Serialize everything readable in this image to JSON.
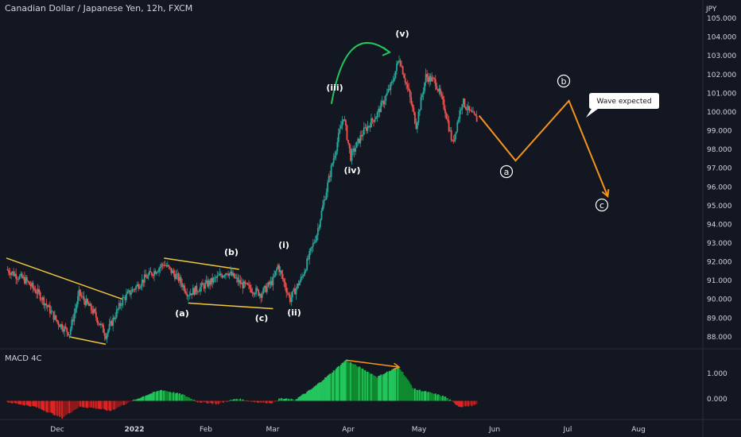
{
  "header": {
    "title": "Canadian Dollar / Japanese Yen, 12h, FXCM"
  },
  "price_axis": {
    "currency": "JPY",
    "ticks": [
      "88.000",
      "89.000",
      "90.000",
      "91.000",
      "92.000",
      "93.000",
      "94.000",
      "95.000",
      "96.000",
      "97.000",
      "98.000",
      "99.000",
      "100.000",
      "101.000",
      "102.000",
      "103.000",
      "104.000",
      "105.000"
    ]
  },
  "time_axis": {
    "labels": [
      "Dec",
      "2022",
      "Feb",
      "Mar",
      "Apr",
      "May",
      "Jun",
      "Jul",
      "Aug"
    ]
  },
  "indicator": {
    "name": "MACD 4C",
    "ticks": [
      "1.000",
      "0.000"
    ]
  },
  "annotations": {
    "wave_labels": [
      "(a)",
      "(b)",
      "(c)",
      "(i)",
      "(ii)",
      "(iii)",
      "(iv)",
      "(v)"
    ],
    "projection_labels": [
      "a",
      "b",
      "c"
    ],
    "callout": "Wave expected"
  },
  "colors": {
    "background": "#131722",
    "bull": "#26a69a",
    "bear": "#ef5350",
    "trendline": "#f2c83a",
    "projection": "#f7931a",
    "arc": "#22c55e",
    "macd_up": "#22c55e",
    "macd_down": "#e02424"
  },
  "chart_data": {
    "type": "candlestick",
    "title": "Canadian Dollar / Japanese Yen, 12h, FXCM",
    "ylabel": "JPY",
    "ylim": [
      87.4,
      105.3
    ],
    "x_labels": [
      "Dec",
      "2022",
      "Feb",
      "Mar",
      "Apr",
      "May",
      "Jun",
      "Jul",
      "Aug"
    ],
    "price_path": [
      {
        "date": "Nov 10",
        "close": 91.6
      },
      {
        "date": "Nov 18",
        "close": 91.0
      },
      {
        "date": "Nov 24",
        "close": 90.2
      },
      {
        "date": "Dec 1",
        "close": 88.8
      },
      {
        "date": "Dec 6",
        "close": 88.2
      },
      {
        "date": "Dec 10",
        "close": 90.3
      },
      {
        "date": "Dec 16",
        "close": 89.3
      },
      {
        "date": "Dec 21",
        "close": 88.1
      },
      {
        "date": "Dec 28",
        "close": 90.0
      },
      {
        "date": "Jan 6",
        "close": 91.1
      },
      {
        "date": "Jan 14",
        "close": 91.9
      },
      {
        "date": "Jan 20",
        "close": 91.1
      },
      {
        "date": "Jan 24",
        "close": 90.3
      },
      {
        "date": "Feb 2",
        "close": 90.9
      },
      {
        "date": "Feb 9",
        "close": 91.5
      },
      {
        "date": "Feb 15",
        "close": 90.8
      },
      {
        "date": "Feb 23",
        "close": 90.3
      },
      {
        "date": "Feb 28",
        "close": 91.0
      },
      {
        "date": "Mar 2",
        "close": 91.8
      },
      {
        "date": "Mar 7",
        "close": 90.0
      },
      {
        "date": "Mar 12",
        "close": 91.2
      },
      {
        "date": "Mar 18",
        "close": 93.5
      },
      {
        "date": "Mar 24",
        "close": 97.0
      },
      {
        "date": "Mar 29",
        "close": 99.8
      },
      {
        "date": "Apr 1",
        "close": 97.6
      },
      {
        "date": "Apr 6",
        "close": 98.9
      },
      {
        "date": "Apr 12",
        "close": 99.9
      },
      {
        "date": "Apr 18",
        "close": 101.5
      },
      {
        "date": "Apr 21",
        "close": 102.9
      },
      {
        "date": "Apr 25",
        "close": 101.0
      },
      {
        "date": "Apr 28",
        "close": 99.3
      },
      {
        "date": "May 2",
        "close": 101.9
      },
      {
        "date": "May 6",
        "close": 101.6
      },
      {
        "date": "May 10",
        "close": 100.1
      },
      {
        "date": "May 13",
        "close": 98.3
      },
      {
        "date": "May 17",
        "close": 100.6
      },
      {
        "date": "May 20",
        "close": 100.0
      },
      {
        "date": "May 23",
        "close": 99.6
      }
    ],
    "projection": [
      {
        "label": "",
        "date": "May 24",
        "value": 99.8
      },
      {
        "label": "a",
        "date": "Jun 8",
        "value": 97.4
      },
      {
        "label": "b",
        "date": "Jun 30",
        "value": 100.6
      },
      {
        "label": "c",
        "date": "Jul 16",
        "value": 95.5
      }
    ],
    "wave_points": [
      {
        "label": "(a)",
        "date": "Jan 24",
        "value": 89.7
      },
      {
        "label": "(b)",
        "date": "Feb 14",
        "value": 92.0
      },
      {
        "label": "(c)",
        "date": "Feb 28",
        "value": 89.2
      },
      {
        "label": "(i)",
        "date": "Mar 2",
        "value": 92.3
      },
      {
        "label": "(ii)",
        "date": "Mar 7",
        "value": 89.4
      },
      {
        "label": "(iii)",
        "date": "Mar 29",
        "value": 100.6
      },
      {
        "label": "(iv)",
        "date": "Apr 1",
        "value": 96.8
      },
      {
        "label": "(v)",
        "date": "Apr 21",
        "value": 103.4
      }
    ],
    "trendlines": [
      {
        "from": {
          "date": "Nov 10",
          "value": 92.2
        },
        "to": {
          "date": "Dec 28",
          "value": 90.0
        }
      },
      {
        "from": {
          "date": "Dec 6",
          "value": 88.0
        },
        "to": {
          "date": "Dec 21",
          "value": 87.6
        }
      },
      {
        "from": {
          "date": "Jan 14",
          "value": 92.2
        },
        "to": {
          "date": "Feb 14",
          "value": 91.6
        }
      },
      {
        "from": {
          "date": "Jan 24",
          "value": 89.8
        },
        "to": {
          "date": "Feb 28",
          "value": 89.5
        }
      }
    ],
    "macd": {
      "name": "MACD 4C",
      "ylim": [
        -0.9,
        2.5
      ],
      "ticks": [
        1.0,
        0.0
      ],
      "path": [
        {
          "date": "Nov 10",
          "value": -0.05
        },
        {
          "date": "Nov 22",
          "value": -0.3
        },
        {
          "date": "Dec 3",
          "value": -0.85
        },
        {
          "date": "Dec 10",
          "value": -0.3
        },
        {
          "date": "Dec 16",
          "value": -0.35
        },
        {
          "date": "Dec 23",
          "value": -0.5
        },
        {
          "date": "Dec 30",
          "value": -0.1
        },
        {
          "date": "Jan 7",
          "value": 0.3
        },
        {
          "date": "Jan 13",
          "value": 0.55
        },
        {
          "date": "Jan 22",
          "value": 0.3
        },
        {
          "date": "Jan 28",
          "value": -0.05
        },
        {
          "date": "Feb 5",
          "value": -0.15
        },
        {
          "date": "Feb 13",
          "value": 0.1
        },
        {
          "date": "Feb 20",
          "value": -0.05
        },
        {
          "date": "Feb 28",
          "value": -0.1
        },
        {
          "date": "Mar 3",
          "value": 0.12
        },
        {
          "date": "Mar 9",
          "value": 0.05
        },
        {
          "date": "Mar 16",
          "value": 0.6
        },
        {
          "date": "Mar 24",
          "value": 1.4
        },
        {
          "date": "Mar 30",
          "value": 2.05
        },
        {
          "date": "Apr 6",
          "value": 1.6
        },
        {
          "date": "Apr 12",
          "value": 1.2
        },
        {
          "date": "Apr 16",
          "value": 1.45
        },
        {
          "date": "Apr 21",
          "value": 1.7
        },
        {
          "date": "Apr 27",
          "value": 0.6
        },
        {
          "date": "May 4",
          "value": 0.4
        },
        {
          "date": "May 10",
          "value": 0.2
        },
        {
          "date": "May 16",
          "value": -0.3
        },
        {
          "date": "May 23",
          "value": -0.2
        }
      ],
      "divergence": {
        "from": {
          "date": "Mar 30",
          "value": 2.05
        },
        "to": {
          "date": "Apr 21",
          "value": 1.7
        }
      }
    }
  }
}
